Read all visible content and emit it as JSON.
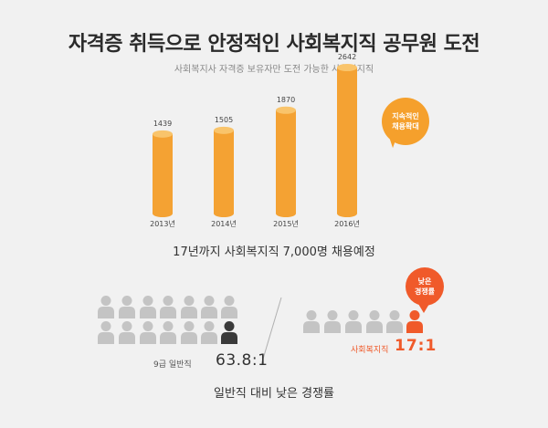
{
  "header": {
    "title": "자격증 취득으로 안정적인 사회복지직 공무원 도전",
    "subtitle": "사회복지사 자격증 보유자만 도전 가능한 사회복지직"
  },
  "growth_badge": {
    "line1": "지속적인",
    "line2": "채용확대"
  },
  "chart_data": {
    "type": "bar",
    "categories": [
      "2013년",
      "2014년",
      "2015년",
      "2016년"
    ],
    "values": [
      1439,
      1505,
      1870,
      2642
    ],
    "title": "",
    "xlabel": "",
    "ylabel": "",
    "ylim": [
      0,
      2800
    ]
  },
  "plan_text": "17년까지 사회복지직 7,000명 채용예정",
  "competition": {
    "general": {
      "label": "9급 일반직",
      "ratio": "63.8:1"
    },
    "social": {
      "label": "사회복지직",
      "ratio": "17:1"
    },
    "badge": {
      "line1": "낮은",
      "line2": "경쟁률"
    }
  },
  "footer_text": "일반직 대비 낮은 경쟁률",
  "colors": {
    "bar": "#f4a233",
    "bar_top": "#f9c46b",
    "person": "#c4c4c4",
    "person_dark": "#3a3a3a",
    "accent": "#f05a2a"
  }
}
